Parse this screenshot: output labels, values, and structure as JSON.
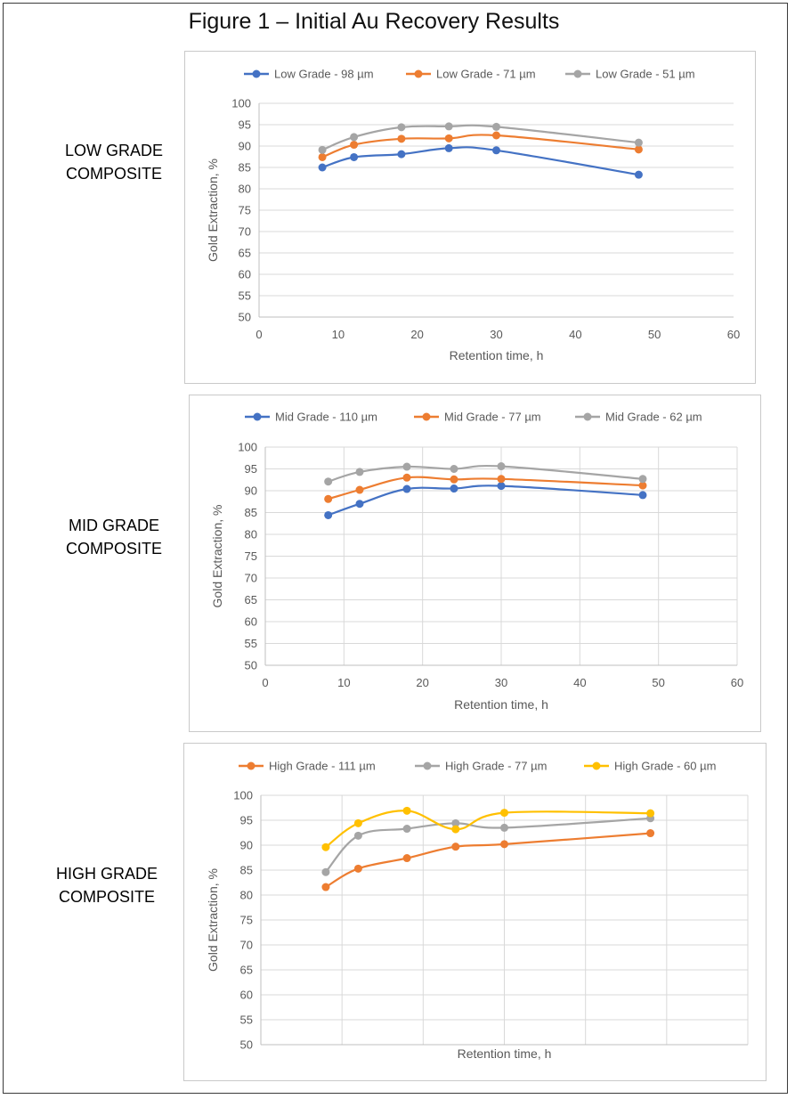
{
  "figure": {
    "title": "Figure 1 – Initial Au Recovery Results"
  },
  "chart_data": [
    {
      "type": "line",
      "composite_label": [
        "LOW GRADE",
        "COMPOSITE"
      ],
      "xlabel": "Retention time, h",
      "ylabel": "Gold Extraction, %",
      "xlim": [
        0,
        60
      ],
      "ylim": [
        50,
        100
      ],
      "xticks": [
        0,
        10,
        20,
        30,
        40,
        50,
        60
      ],
      "yticks": [
        50,
        55,
        60,
        65,
        70,
        75,
        80,
        85,
        90,
        95,
        100
      ],
      "x_gridlines": false,
      "y_gridlines": true,
      "legend_position": "top",
      "series": [
        {
          "name": "Low Grade - 98 µm",
          "color": "#4472C4",
          "x": [
            8,
            12,
            18,
            24,
            30,
            48
          ],
          "y": [
            85.0,
            87.4,
            88.1,
            89.5,
            89.0,
            83.3
          ]
        },
        {
          "name": "Low Grade - 71 µm",
          "color": "#ED7D31",
          "x": [
            8,
            12,
            18,
            24,
            30,
            48
          ],
          "y": [
            87.4,
            90.3,
            91.7,
            91.8,
            92.5,
            89.2
          ]
        },
        {
          "name": "Low Grade - 51 µm",
          "color": "#A5A5A5",
          "x": [
            8,
            12,
            18,
            24,
            30,
            48
          ],
          "y": [
            89.1,
            92.1,
            94.4,
            94.6,
            94.5,
            90.8
          ]
        }
      ]
    },
    {
      "type": "line",
      "composite_label": [
        "MID GRADE",
        "COMPOSITE"
      ],
      "xlabel": "Retention time, h",
      "ylabel": "Gold Extraction, %",
      "xlim": [
        0,
        60
      ],
      "ylim": [
        50,
        100
      ],
      "xticks": [
        0,
        10,
        20,
        30,
        40,
        50,
        60
      ],
      "yticks": [
        50,
        55,
        60,
        65,
        70,
        75,
        80,
        85,
        90,
        95,
        100
      ],
      "x_gridlines": true,
      "y_gridlines": true,
      "legend_position": "top",
      "series": [
        {
          "name": "Mid Grade - 110 µm",
          "color": "#4472C4",
          "x": [
            8,
            12,
            18,
            24,
            30,
            48
          ],
          "y": [
            84.4,
            87.0,
            90.4,
            90.5,
            91.1,
            89.0
          ]
        },
        {
          "name": "Mid Grade - 77 µm",
          "color": "#ED7D31",
          "x": [
            8,
            12,
            18,
            24,
            30,
            48
          ],
          "y": [
            88.1,
            90.2,
            93.0,
            92.6,
            92.7,
            91.2
          ]
        },
        {
          "name": "Mid Grade - 62 µm",
          "color": "#A5A5A5",
          "x": [
            8,
            12,
            18,
            24,
            30,
            48
          ],
          "y": [
            92.1,
            94.3,
            95.5,
            95.0,
            95.6,
            92.7
          ]
        }
      ]
    },
    {
      "type": "line",
      "composite_label": [
        "HIGH GRADE",
        "COMPOSITE"
      ],
      "xlabel": "Retention time, h",
      "ylabel": "Gold Extraction, %",
      "xlim": [
        0,
        60
      ],
      "ylim": [
        50,
        100
      ],
      "xticks": [],
      "yticks": [
        50,
        55,
        60,
        65,
        70,
        75,
        80,
        85,
        90,
        95,
        100
      ],
      "x_gridlines": true,
      "y_gridlines": true,
      "legend_position": "top",
      "series": [
        {
          "name": "High Grade - 111 µm",
          "color": "#ED7D31",
          "x": [
            8,
            12,
            18,
            24,
            30,
            48
          ],
          "y": [
            81.6,
            85.3,
            87.4,
            89.7,
            90.2,
            92.4
          ]
        },
        {
          "name": "High Grade - 77 µm",
          "color": "#A5A5A5",
          "x": [
            8,
            12,
            18,
            24,
            30,
            48
          ],
          "y": [
            84.6,
            91.9,
            93.3,
            94.4,
            93.5,
            95.4
          ]
        },
        {
          "name": "High Grade - 60 µm",
          "color": "#FFC000",
          "x": [
            8,
            12,
            18,
            24,
            30,
            48
          ],
          "y": [
            89.6,
            94.4,
            96.9,
            93.2,
            96.5,
            96.4
          ]
        }
      ]
    }
  ]
}
